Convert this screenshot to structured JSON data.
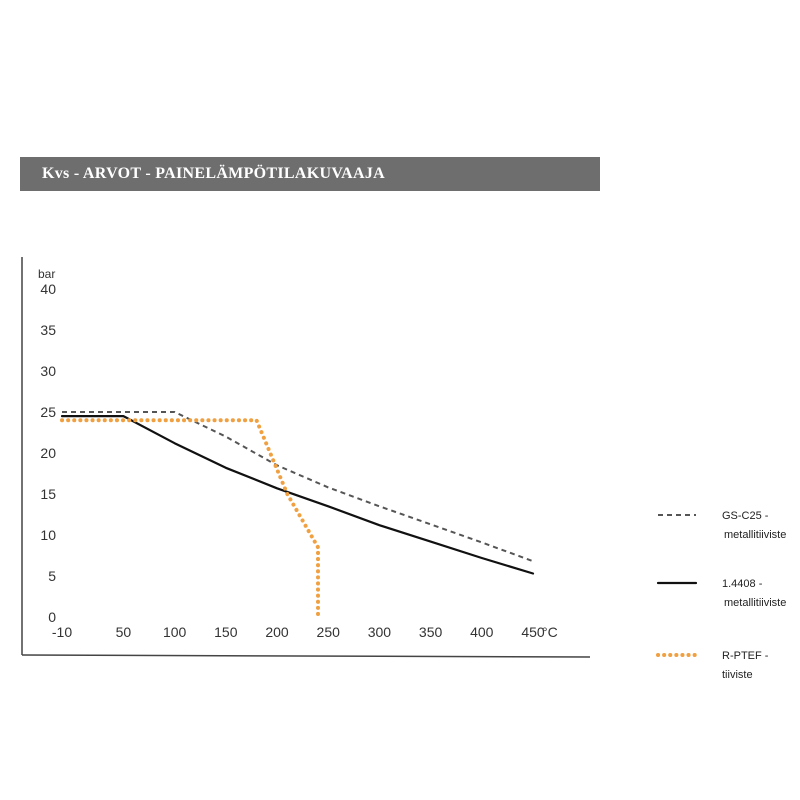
{
  "chart_data": {
    "type": "line",
    "title": "Kvs - ARVOT   - PAINELÄMPÖTILAKUVAAJA",
    "ylabel": "bar",
    "xunit": "°C",
    "xlim": [
      -10,
      450
    ],
    "ylim": [
      0,
      40
    ],
    "x_ticks": [
      -10,
      50,
      100,
      150,
      200,
      250,
      300,
      350,
      400,
      450
    ],
    "x_tick_labels": [
      "-10",
      "50",
      "100",
      "150",
      "200",
      "250",
      "300",
      "350",
      "400",
      "450"
    ],
    "y_ticks": [
      0,
      5,
      10,
      15,
      20,
      25,
      30,
      35,
      40
    ],
    "y_tick_labels": [
      "0",
      "5",
      "10",
      "15",
      "20",
      "25",
      "30",
      "35",
      "40"
    ],
    "grid": false,
    "legend_position": "right",
    "series": [
      {
        "name": "GS-C25 - metallitiiviste",
        "label_lines": [
          "GS-C25   -",
          "metallitiiviste"
        ],
        "color": "#555555",
        "style": "dashed",
        "x": [
          -10,
          100,
          150,
          200,
          250,
          300,
          350,
          400,
          450
        ],
        "y": [
          25,
          25,
          22,
          18.5,
          15.8,
          13.5,
          11.3,
          9.1,
          6.8
        ]
      },
      {
        "name": "1.4408 - metallitiiviste",
        "label_lines": [
          "1.4408   -",
          "metallitiiviste"
        ],
        "color": "#111111",
        "style": "solid",
        "x": [
          -10,
          50,
          100,
          150,
          200,
          250,
          300,
          350,
          400,
          450
        ],
        "y": [
          24.5,
          24.5,
          21.2,
          18.2,
          15.7,
          13.5,
          11.2,
          9.2,
          7.2,
          5.3
        ]
      },
      {
        "name": "R-PTEF - tiiviste",
        "label_lines": [
          "R-PTEF  -",
          "tiiviste"
        ],
        "color": "#f0a040",
        "style": "dotted",
        "x": [
          -10,
          180,
          210,
          240,
          240
        ],
        "y": [
          24,
          24,
          15,
          8.5,
          0
        ]
      }
    ]
  }
}
